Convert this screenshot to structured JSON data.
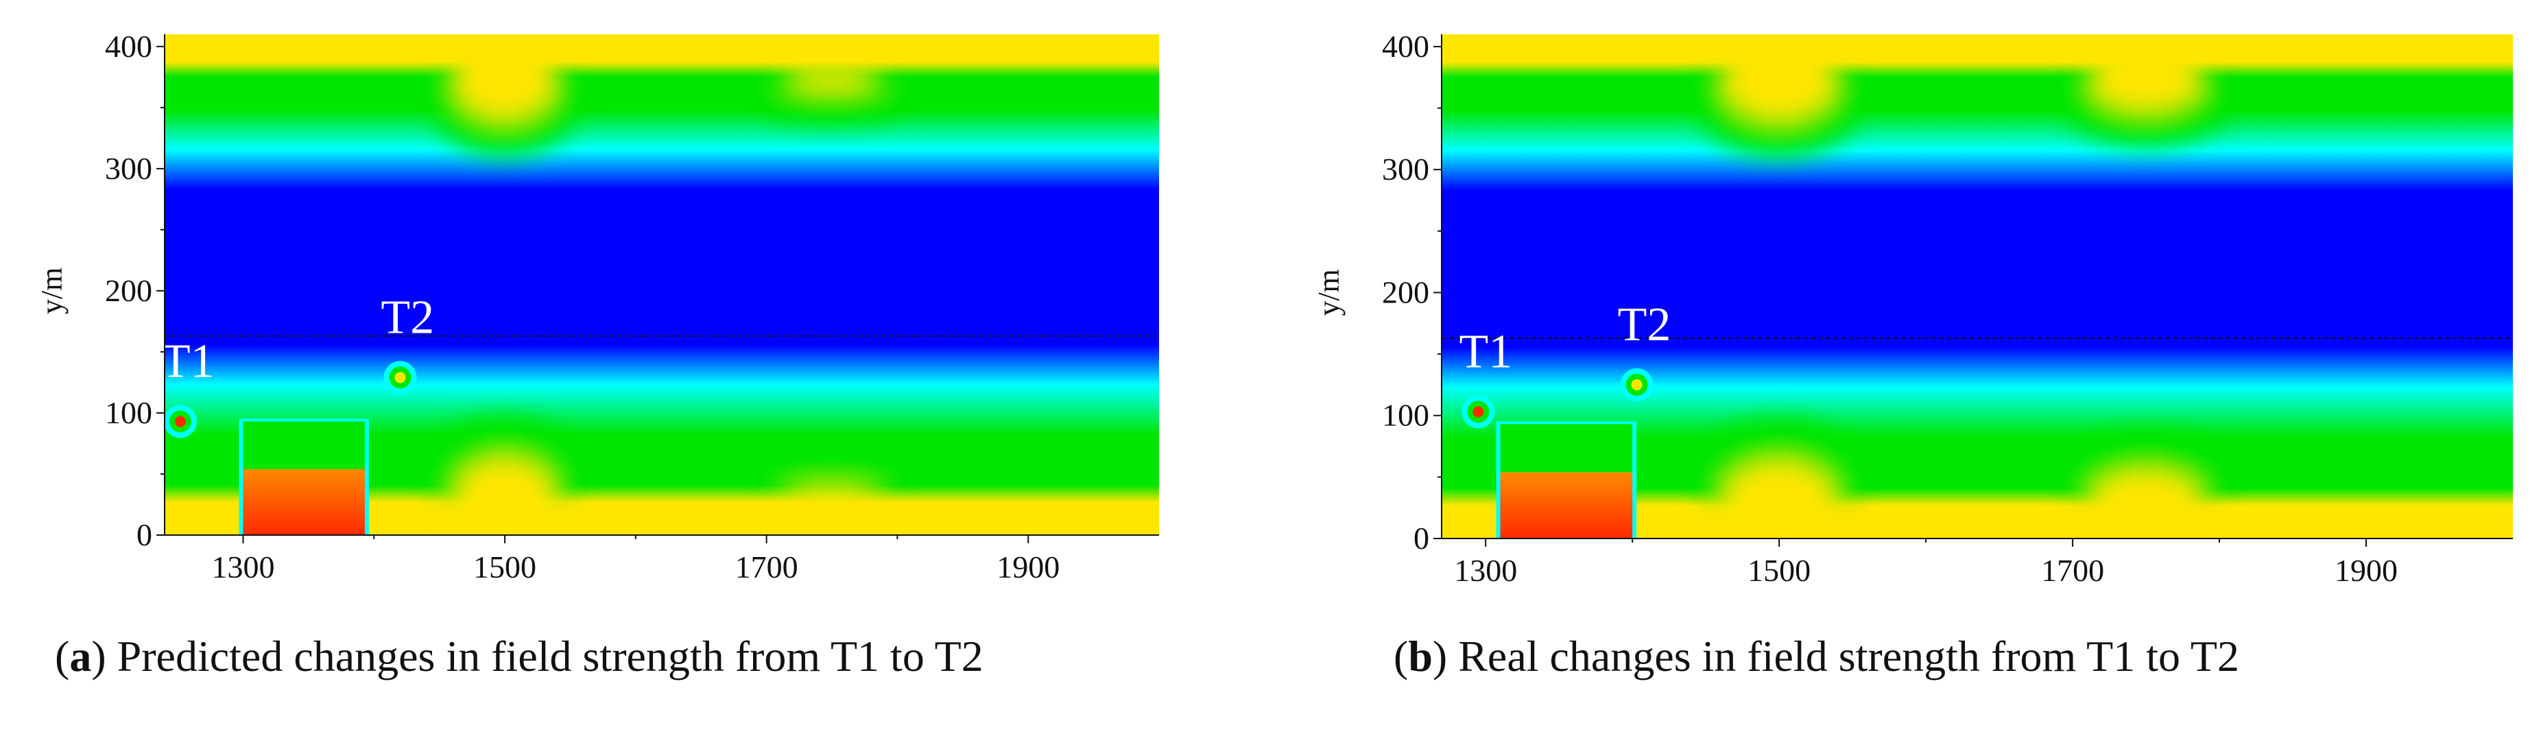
{
  "chart_data": [
    {
      "type": "heatmap",
      "panel_letter": "a",
      "caption": "Predicted changes in field strength from T1 to T2",
      "xlim": [
        1240,
        2000
      ],
      "ylim": [
        0,
        410
      ],
      "xticks": [
        1300,
        1500,
        1700,
        1900
      ],
      "yticks": [
        0,
        100,
        200,
        300,
        400
      ],
      "ylabel": "y/m",
      "dashed_line_y": 163,
      "markers": [
        {
          "label": "T1",
          "x": 1252,
          "y": 93
        },
        {
          "label": "T2",
          "x": 1420,
          "y": 129
        }
      ],
      "buildings": [
        {
          "x0": 1300,
          "x1": 1393,
          "y0": 0,
          "y1": 93
        }
      ],
      "hills": [
        {
          "x": 1500,
          "depth": 42
        },
        {
          "x": 1750,
          "depth": 10
        }
      ],
      "colorscale": [
        "#ff2a00",
        "#ffe600",
        "#00e600",
        "#00ffff",
        "#0000ff"
      ]
    },
    {
      "type": "heatmap",
      "panel_letter": "b",
      "caption": "Real changes in field strength from T1 to T2",
      "xlim": [
        1270,
        2000
      ],
      "ylim": [
        0,
        410
      ],
      "xticks": [
        1300,
        1500,
        1700,
        1900
      ],
      "yticks": [
        0,
        100,
        200,
        300,
        400
      ],
      "ylabel": "y/m",
      "dashed_line_y": 163,
      "markers": [
        {
          "label": "T1",
          "x": 1295,
          "y": 103
        },
        {
          "label": "T2",
          "x": 1403,
          "y": 125
        }
      ],
      "buildings": [
        {
          "x0": 1310,
          "x1": 1400,
          "y0": 0,
          "y1": 93
        }
      ],
      "hills": [
        {
          "x": 1500,
          "depth": 42
        },
        {
          "x": 1750,
          "depth": 32
        }
      ],
      "colorscale": [
        "#ff2a00",
        "#ffe600",
        "#00e600",
        "#00ffff",
        "#0000ff"
      ]
    }
  ]
}
